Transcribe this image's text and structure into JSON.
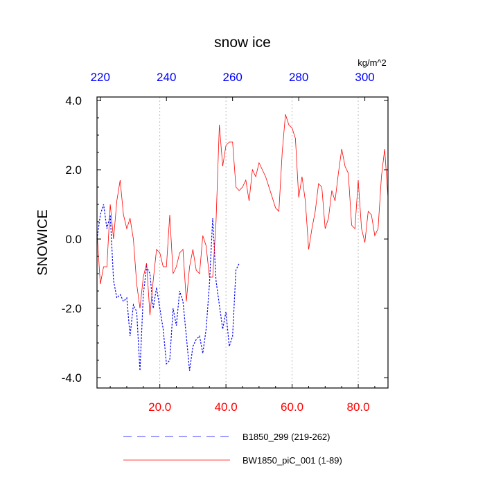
{
  "chart_data": {
    "type": "line",
    "title": "snow ice",
    "ylabel": "SNOWICE",
    "top_units": "kg/m^2",
    "xlim": [
      1,
      89
    ],
    "ylim": [
      -4.3,
      4.1
    ],
    "top_xlim": [
      219,
      307
    ],
    "yticks": [
      {
        "value": 4.0,
        "label": "4.0"
      },
      {
        "value": 2.0,
        "label": "2.0"
      },
      {
        "value": 0.0,
        "label": "0.0"
      },
      {
        "value": -2.0,
        "label": "-2.0"
      },
      {
        "value": -4.0,
        "label": "-4.0"
      }
    ],
    "xticks_bottom": [
      {
        "value": 20,
        "label": "20.0"
      },
      {
        "value": 40,
        "label": "40.0"
      },
      {
        "value": 60,
        "label": "60.0"
      },
      {
        "value": 80,
        "label": "80.0"
      }
    ],
    "xticks_top": [
      {
        "value": 220,
        "label": "220"
      },
      {
        "value": 240,
        "label": "240"
      },
      {
        "value": 260,
        "label": "260"
      },
      {
        "value": 280,
        "label": "280"
      },
      {
        "value": 300,
        "label": "300"
      }
    ],
    "colors": {
      "bottom_axis": "#ff0000",
      "top_axis": "#0000ff"
    },
    "series": [
      {
        "name": "B1850_299 (219-262)",
        "color": "#0000ff",
        "dash": "dashed",
        "x": [
          1,
          2,
          3,
          4,
          5,
          6,
          7,
          8,
          9,
          10,
          11,
          12,
          13,
          14,
          15,
          16,
          17,
          18,
          19,
          20,
          21,
          22,
          23,
          24,
          25,
          26,
          27,
          28,
          29,
          30,
          31,
          32,
          33,
          34,
          35,
          36,
          37,
          38,
          39,
          40,
          41,
          42,
          43,
          44
        ],
        "values": [
          0.0,
          0.7,
          1.0,
          0.3,
          0.7,
          -1.2,
          -1.7,
          -1.6,
          -1.8,
          -1.7,
          -2.8,
          -1.9,
          -2.1,
          -3.8,
          -1.6,
          -0.8,
          -1.0,
          -2.0,
          -1.4,
          -2.0,
          -2.6,
          -3.6,
          -3.5,
          -2.0,
          -2.5,
          -1.5,
          -1.8,
          -2.8,
          -3.8,
          -3.1,
          -2.9,
          -2.8,
          -3.3,
          -2.6,
          -1.3,
          0.6,
          -1.2,
          -1.9,
          -2.6,
          -2.1,
          -3.1,
          -2.8,
          -0.9,
          -0.7
        ]
      },
      {
        "name": "BW1850_piC_001 (1-89)",
        "color": "#ff0000",
        "dash": "solid",
        "x": [
          1,
          2,
          3,
          4,
          5,
          6,
          7,
          8,
          9,
          10,
          11,
          12,
          13,
          14,
          15,
          16,
          17,
          18,
          19,
          20,
          21,
          22,
          23,
          24,
          25,
          26,
          27,
          28,
          29,
          30,
          31,
          32,
          33,
          34,
          35,
          36,
          37,
          38,
          39,
          40,
          41,
          42,
          43,
          44,
          45,
          46,
          47,
          48,
          49,
          50,
          51,
          52,
          53,
          54,
          55,
          56,
          57,
          58,
          59,
          60,
          61,
          62,
          63,
          64,
          65,
          66,
          67,
          68,
          69,
          70,
          71,
          72,
          73,
          74,
          75,
          76,
          77,
          78,
          79,
          80,
          81,
          82,
          83,
          84,
          85,
          86,
          87,
          88,
          89
        ],
        "values": [
          0.2,
          -1.3,
          -0.8,
          -0.8,
          1.0,
          0.0,
          1.1,
          1.7,
          0.7,
          0.3,
          0.6,
          0.0,
          -1.3,
          -2.0,
          -1.1,
          -0.7,
          -2.2,
          -1.2,
          -0.3,
          -0.4,
          -0.8,
          -0.8,
          0.7,
          -1.0,
          -0.8,
          -0.4,
          -0.3,
          -1.8,
          -0.8,
          -0.3,
          -0.9,
          -1.0,
          0.1,
          -0.2,
          -1.1,
          -1.1,
          0.5,
          3.3,
          2.1,
          2.7,
          2.8,
          2.8,
          1.5,
          1.4,
          1.5,
          1.7,
          1.1,
          2.0,
          1.8,
          2.2,
          2.0,
          1.8,
          1.5,
          1.2,
          0.9,
          0.8,
          2.5,
          3.6,
          3.3,
          3.2,
          2.9,
          1.2,
          1.8,
          1.1,
          -0.3,
          0.3,
          0.8,
          1.6,
          1.5,
          0.3,
          0.6,
          1.4,
          1.1,
          1.9,
          2.6,
          2.1,
          1.9,
          0.4,
          0.3,
          1.7,
          0.3,
          -0.1,
          0.8,
          0.7,
          0.1,
          0.3,
          1.8,
          2.6,
          1.2
        ]
      }
    ]
  }
}
